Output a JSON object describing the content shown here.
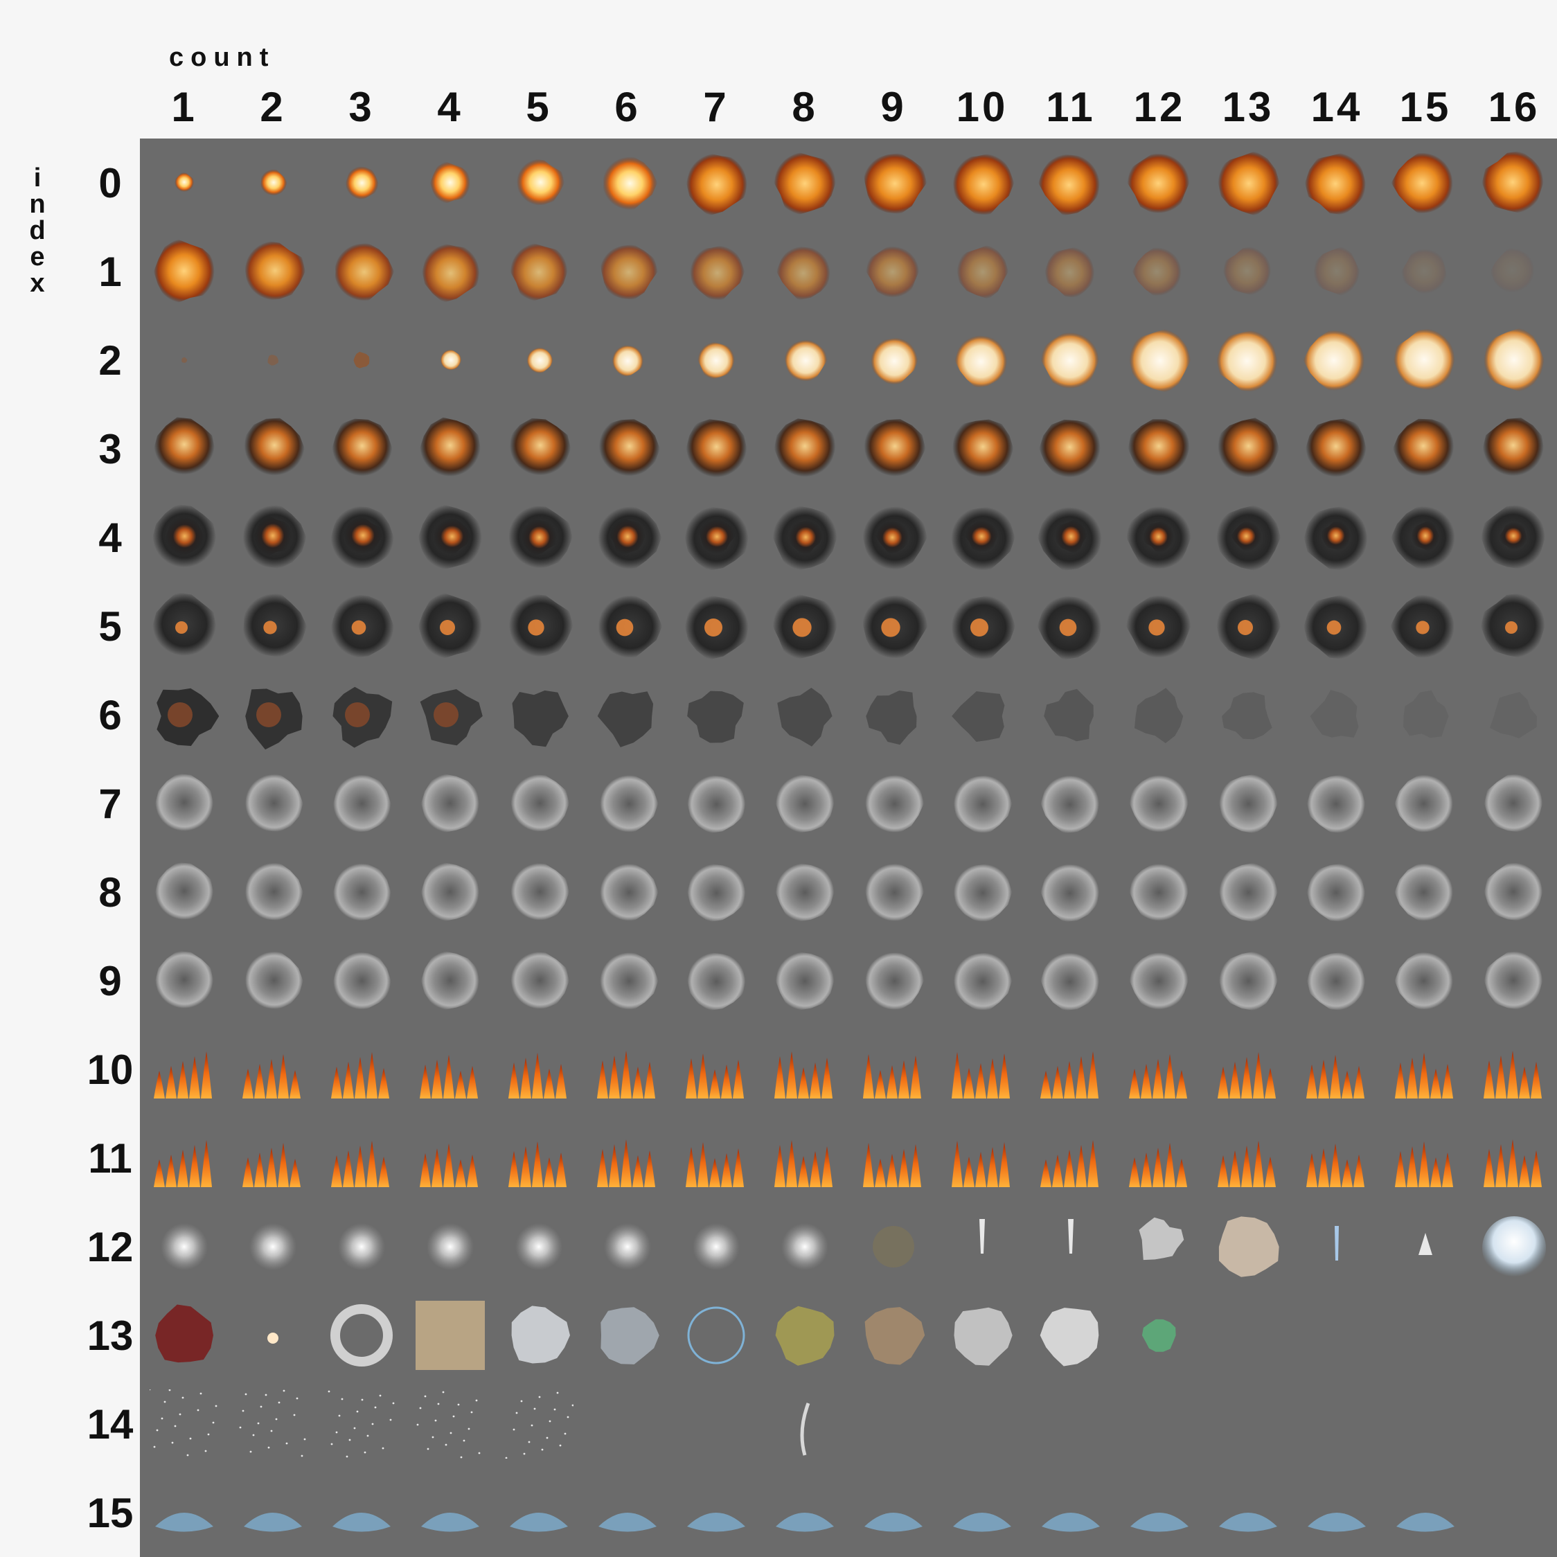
{
  "axes": {
    "x_title": "count",
    "y_title": "index"
  },
  "columns": [
    "1",
    "2",
    "3",
    "4",
    "5",
    "6",
    "7",
    "8",
    "9",
    "10",
    "11",
    "12",
    "13",
    "14",
    "15",
    "16"
  ],
  "rows": [
    "0",
    "1",
    "2",
    "3",
    "4",
    "5",
    "6",
    "7",
    "8",
    "9",
    "10",
    "11",
    "12",
    "13",
    "14",
    "15"
  ],
  "colors": {
    "atlas_background": "#6b6b6b",
    "page_background": "#f6f6f6",
    "fire": "#f08a1c",
    "smoke_dark": "#2a2a2a",
    "smoke_light": "#bdbdbd",
    "water": "#7fb2d6"
  },
  "sprite_rows": [
    {
      "kind": "explosion-start",
      "frames": 16
    },
    {
      "kind": "explosion-fade",
      "frames": 16
    },
    {
      "kind": "flash-grow",
      "frames": 16
    },
    {
      "kind": "fireball",
      "frames": 16
    },
    {
      "kind": "fireball-smoke",
      "frames": 16
    },
    {
      "kind": "fire-ring-smoke",
      "frames": 16
    },
    {
      "kind": "smoke-disperse",
      "frames": 16
    },
    {
      "kind": "grey-smoke",
      "frames": 16
    },
    {
      "kind": "grey-smoke",
      "frames": 16
    },
    {
      "kind": "grey-smoke",
      "frames": 16
    },
    {
      "kind": "flames",
      "frames": 16
    },
    {
      "kind": "flames",
      "frames": 16
    },
    {
      "kind": "misc-effects",
      "frames": 16
    },
    {
      "kind": "misc-textures",
      "frames": 12
    },
    {
      "kind": "sparks-debris",
      "frames": 9
    },
    {
      "kind": "water-splash",
      "frames": 15
    }
  ]
}
